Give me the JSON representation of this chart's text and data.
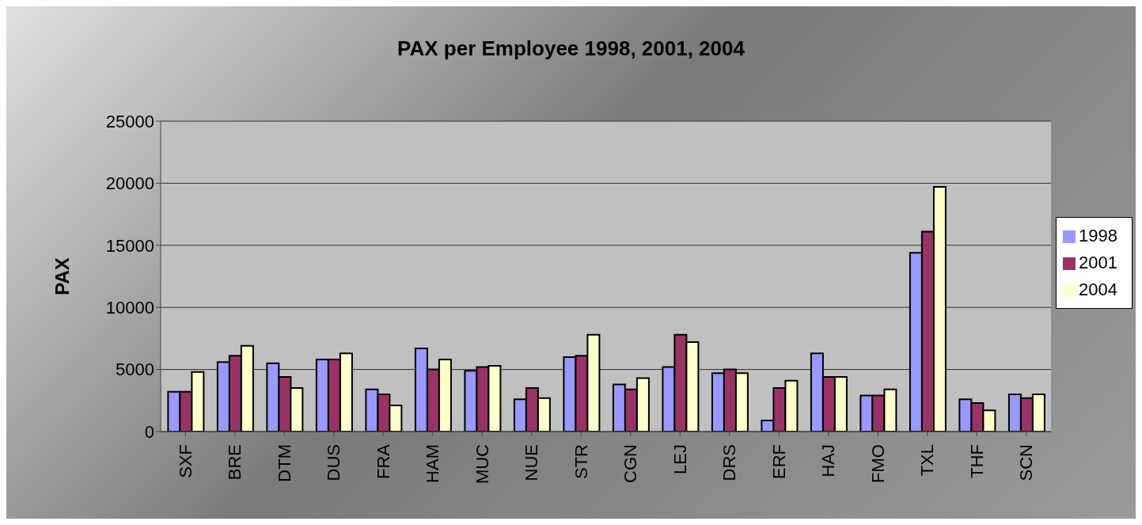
{
  "chart_data": {
    "type": "bar",
    "title": "PAX per Employee 1998, 2001, 2004",
    "ylabel": "PAX",
    "categories": [
      "SXF",
      "BRE",
      "DTM",
      "DUS",
      "FRA",
      "HAM",
      "MUC",
      "NUE",
      "STR",
      "CGN",
      "LEJ",
      "DRS",
      "ERF",
      "HAJ",
      "FMO",
      "TXL",
      "THF",
      "SCN"
    ],
    "series": [
      {
        "name": "1998",
        "color": "#9999ff",
        "values": [
          3200,
          5600,
          5500,
          5800,
          3400,
          6700,
          4900,
          2600,
          6000,
          3800,
          5200,
          4700,
          900,
          6300,
          2900,
          14400,
          2600,
          3000
        ]
      },
      {
        "name": "2001",
        "color": "#993366",
        "values": [
          3200,
          6100,
          4400,
          5800,
          3000,
          5000,
          5200,
          3500,
          6100,
          3400,
          7800,
          5000,
          3500,
          4400,
          2900,
          16100,
          2300,
          2700
        ]
      },
      {
        "name": "2004",
        "color": "#ffffcc",
        "values": [
          4800,
          6900,
          3500,
          6300,
          2100,
          5800,
          5300,
          2700,
          7800,
          4300,
          7200,
          4700,
          4100,
          4400,
          3400,
          19700,
          1700,
          3000
        ]
      }
    ],
    "ylim": [
      0,
      25000
    ],
    "yticks": [
      0,
      5000,
      10000,
      15000,
      20000,
      25000
    ],
    "grid": "y",
    "legend": "right"
  }
}
